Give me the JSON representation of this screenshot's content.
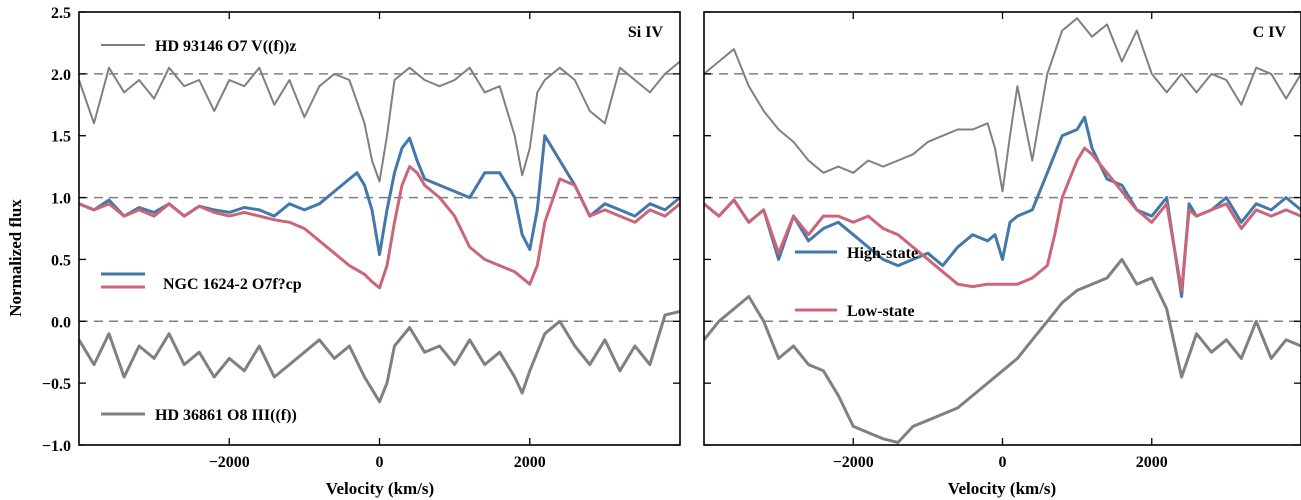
{
  "chart_data": [
    {
      "type": "line",
      "title": "Si IV",
      "xlabel": "Velocity (km/s)",
      "ylabel": "Normalized flux",
      "xlim": [
        -4000,
        4000
      ],
      "ylim": [
        -1.0,
        2.5
      ],
      "xticks": [
        -2000,
        0,
        2000
      ],
      "xtick_labels": [
        "−2000",
        "0",
        "2000"
      ],
      "yticks": [
        -1.0,
        -0.5,
        0.0,
        0.5,
        1.0,
        1.5,
        2.0,
        2.5
      ],
      "ytick_labels": [
        "−1.0",
        "−0.5",
        "0.0",
        "0.5",
        "1.0",
        "1.5",
        "2.0",
        "2.5"
      ],
      "reference_lines": [
        0.0,
        1.0,
        2.0
      ],
      "series": [
        {
          "name": "HD 93146 O7 V((f))z",
          "color": "#808080",
          "x": [
            -4000,
            -3800,
            -3600,
            -3400,
            -3200,
            -3000,
            -2800,
            -2600,
            -2400,
            -2200,
            -2000,
            -1800,
            -1600,
            -1400,
            -1200,
            -1000,
            -800,
            -600,
            -400,
            -200,
            -100,
            0,
            100,
            200,
            400,
            600,
            800,
            1000,
            1200,
            1400,
            1600,
            1800,
            1900,
            2000,
            2100,
            2200,
            2400,
            2600,
            2800,
            3000,
            3200,
            3400,
            3600,
            3800,
            4000
          ],
          "y": [
            1.95,
            1.6,
            2.05,
            1.85,
            1.95,
            1.8,
            2.05,
            1.9,
            1.95,
            1.7,
            1.95,
            1.9,
            2.05,
            1.75,
            1.95,
            1.65,
            1.9,
            2.0,
            1.95,
            1.6,
            1.3,
            1.13,
            1.5,
            1.95,
            2.05,
            1.95,
            1.9,
            1.95,
            2.05,
            1.85,
            1.9,
            1.5,
            1.18,
            1.4,
            1.85,
            1.95,
            2.05,
            1.95,
            1.7,
            1.6,
            2.05,
            1.95,
            1.85,
            2.0,
            2.1
          ]
        },
        {
          "name": "NGC 1624-2 O7f?cp",
          "color": "#4477aa",
          "x": [
            -4000,
            -3800,
            -3600,
            -3400,
            -3200,
            -3000,
            -2800,
            -2600,
            -2400,
            -2200,
            -2000,
            -1800,
            -1600,
            -1400,
            -1200,
            -1000,
            -800,
            -600,
            -400,
            -300,
            -200,
            -100,
            0,
            100,
            200,
            300,
            400,
            500,
            600,
            800,
            1000,
            1200,
            1400,
            1600,
            1800,
            1900,
            2000,
            2100,
            2200,
            2400,
            2600,
            2800,
            3000,
            3200,
            3400,
            3600,
            3800,
            4000
          ],
          "y": [
            0.95,
            0.9,
            0.98,
            0.85,
            0.92,
            0.88,
            0.95,
            0.85,
            0.93,
            0.9,
            0.88,
            0.92,
            0.9,
            0.85,
            0.95,
            0.9,
            0.95,
            1.05,
            1.15,
            1.2,
            1.1,
            0.9,
            0.54,
            0.9,
            1.2,
            1.4,
            1.48,
            1.3,
            1.15,
            1.1,
            1.05,
            1.0,
            1.2,
            1.2,
            1.0,
            0.7,
            0.58,
            0.9,
            1.5,
            1.3,
            1.1,
            0.85,
            0.95,
            0.9,
            0.85,
            0.95,
            0.9,
            1.0
          ]
        },
        {
          "name": "NGC 1624-2 O7f?cp (Low-state)",
          "color": "#cc6677",
          "x": [
            -4000,
            -3800,
            -3600,
            -3400,
            -3200,
            -3000,
            -2800,
            -2600,
            -2400,
            -2200,
            -2000,
            -1800,
            -1600,
            -1400,
            -1200,
            -1000,
            -800,
            -600,
            -400,
            -200,
            -100,
            0,
            100,
            200,
            300,
            400,
            500,
            600,
            800,
            1000,
            1200,
            1400,
            1600,
            1800,
            2000,
            2100,
            2200,
            2400,
            2600,
            2800,
            3000,
            3200,
            3400,
            3600,
            3800,
            4000
          ],
          "y": [
            0.95,
            0.9,
            0.95,
            0.85,
            0.9,
            0.85,
            0.95,
            0.85,
            0.93,
            0.88,
            0.85,
            0.88,
            0.85,
            0.82,
            0.8,
            0.75,
            0.65,
            0.55,
            0.45,
            0.38,
            0.32,
            0.27,
            0.45,
            0.8,
            1.1,
            1.25,
            1.2,
            1.1,
            1.0,
            0.85,
            0.6,
            0.5,
            0.45,
            0.4,
            0.3,
            0.45,
            0.8,
            1.15,
            1.1,
            0.85,
            0.9,
            0.85,
            0.8,
            0.9,
            0.85,
            0.95
          ]
        },
        {
          "name": "HD 36861 O8 III((f))",
          "color": "#808080",
          "x": [
            -4000,
            -3800,
            -3600,
            -3400,
            -3200,
            -3000,
            -2800,
            -2600,
            -2400,
            -2200,
            -2000,
            -1800,
            -1600,
            -1400,
            -1200,
            -1000,
            -800,
            -600,
            -400,
            -200,
            -100,
            0,
            100,
            200,
            400,
            600,
            800,
            1000,
            1200,
            1400,
            1600,
            1800,
            1900,
            2000,
            2200,
            2400,
            2600,
            2800,
            3000,
            3200,
            3400,
            3600,
            3800,
            4000
          ],
          "y": [
            -0.15,
            -0.35,
            -0.1,
            -0.45,
            -0.2,
            -0.3,
            -0.1,
            -0.35,
            -0.25,
            -0.45,
            -0.3,
            -0.4,
            -0.2,
            -0.45,
            -0.35,
            -0.25,
            -0.15,
            -0.3,
            -0.2,
            -0.45,
            -0.55,
            -0.65,
            -0.5,
            -0.2,
            -0.05,
            -0.25,
            -0.2,
            -0.35,
            -0.15,
            -0.35,
            -0.25,
            -0.45,
            -0.58,
            -0.4,
            -0.1,
            0.0,
            -0.2,
            -0.35,
            -0.15,
            -0.4,
            -0.2,
            -0.35,
            0.05,
            0.08
          ]
        }
      ],
      "legend": [
        {
          "label": "HD 93146 O7 V((f))z",
          "series": 0,
          "position": "top-left"
        },
        {
          "label": "NGC 1624-2 O7f?cp",
          "series": [
            1,
            2
          ],
          "position": "center-left"
        },
        {
          "label": "HD 36861 O8 III((f))",
          "series": 3,
          "position": "bottom-left"
        }
      ]
    },
    {
      "type": "line",
      "title": "C IV",
      "xlabel": "Velocity (km/s)",
      "ylabel": "",
      "xlim": [
        -4000,
        4000
      ],
      "ylim": [
        -1.0,
        2.5
      ],
      "xticks": [
        -2000,
        0,
        2000
      ],
      "xtick_labels": [
        "−2000",
        "0",
        "2000"
      ],
      "reference_lines": [
        0.0,
        1.0,
        2.0
      ],
      "series": [
        {
          "name": "",
          "color": "#808080",
          "x": [
            -4000,
            -3800,
            -3600,
            -3400,
            -3200,
            -3000,
            -2800,
            -2600,
            -2400,
            -2200,
            -2000,
            -1800,
            -1600,
            -1400,
            -1200,
            -1000,
            -800,
            -600,
            -400,
            -200,
            -100,
            0,
            100,
            200,
            400,
            600,
            800,
            1000,
            1200,
            1400,
            1600,
            1800,
            2000,
            2200,
            2400,
            2600,
            2800,
            3000,
            3200,
            3400,
            3600,
            3800,
            4000
          ],
          "y": [
            2.0,
            2.1,
            2.2,
            1.9,
            1.7,
            1.55,
            1.45,
            1.3,
            1.2,
            1.25,
            1.2,
            1.3,
            1.25,
            1.3,
            1.35,
            1.45,
            1.5,
            1.55,
            1.55,
            1.6,
            1.4,
            1.05,
            1.5,
            1.9,
            1.3,
            2.0,
            2.35,
            2.45,
            2.3,
            2.4,
            2.1,
            2.35,
            2.0,
            1.85,
            2.0,
            1.85,
            2.0,
            1.95,
            1.75,
            2.05,
            2.0,
            1.8,
            2.0
          ]
        },
        {
          "name": "High-state",
          "color": "#4477aa",
          "x": [
            -4000,
            -3800,
            -3600,
            -3400,
            -3200,
            -3000,
            -2800,
            -2600,
            -2400,
            -2200,
            -2000,
            -1800,
            -1600,
            -1400,
            -1200,
            -1000,
            -800,
            -600,
            -400,
            -200,
            -100,
            0,
            100,
            200,
            400,
            600,
            800,
            1000,
            1100,
            1200,
            1400,
            1600,
            1800,
            2000,
            2200,
            2400,
            2500,
            2600,
            2800,
            3000,
            3200,
            3400,
            3600,
            3800,
            4000
          ],
          "y": [
            0.95,
            0.85,
            0.98,
            0.8,
            0.9,
            0.5,
            0.85,
            0.65,
            0.75,
            0.8,
            0.7,
            0.6,
            0.5,
            0.45,
            0.5,
            0.55,
            0.45,
            0.6,
            0.7,
            0.65,
            0.7,
            0.5,
            0.8,
            0.85,
            0.9,
            1.2,
            1.5,
            1.55,
            1.65,
            1.4,
            1.15,
            1.1,
            0.9,
            0.85,
            1.0,
            0.2,
            0.95,
            0.85,
            0.9,
            1.0,
            0.8,
            0.95,
            0.9,
            1.0,
            0.9
          ]
        },
        {
          "name": "Low-state",
          "color": "#cc6677",
          "x": [
            -4000,
            -3800,
            -3600,
            -3400,
            -3200,
            -3000,
            -2800,
            -2600,
            -2400,
            -2200,
            -2000,
            -1800,
            -1600,
            -1400,
            -1200,
            -1000,
            -800,
            -600,
            -400,
            -200,
            0,
            200,
            400,
            600,
            700,
            800,
            1000,
            1100,
            1200,
            1400,
            1600,
            1800,
            2000,
            2200,
            2400,
            2500,
            2600,
            2800,
            3000,
            3200,
            3400,
            3600,
            3800,
            4000
          ],
          "y": [
            0.95,
            0.85,
            0.98,
            0.8,
            0.9,
            0.55,
            0.85,
            0.7,
            0.85,
            0.85,
            0.8,
            0.85,
            0.75,
            0.7,
            0.6,
            0.5,
            0.4,
            0.3,
            0.28,
            0.3,
            0.3,
            0.3,
            0.35,
            0.45,
            0.7,
            1.0,
            1.3,
            1.4,
            1.35,
            1.2,
            1.05,
            0.9,
            0.8,
            0.95,
            0.25,
            0.9,
            0.85,
            0.9,
            0.95,
            0.75,
            0.9,
            0.85,
            0.9,
            0.85
          ]
        },
        {
          "name": "",
          "color": "#808080",
          "x": [
            -4000,
            -3800,
            -3600,
            -3400,
            -3200,
            -3000,
            -2800,
            -2600,
            -2400,
            -2200,
            -2000,
            -1800,
            -1600,
            -1400,
            -1200,
            -1000,
            -800,
            -600,
            -400,
            -200,
            0,
            200,
            400,
            600,
            800,
            1000,
            1200,
            1400,
            1600,
            1800,
            2000,
            2200,
            2400,
            2600,
            2800,
            3000,
            3200,
            3400,
            3600,
            3800,
            4000
          ],
          "y": [
            -0.15,
            0.0,
            0.1,
            0.2,
            0.0,
            -0.3,
            -0.2,
            -0.35,
            -0.4,
            -0.6,
            -0.85,
            -0.9,
            -0.95,
            -0.98,
            -0.85,
            -0.8,
            -0.75,
            -0.7,
            -0.6,
            -0.5,
            -0.4,
            -0.3,
            -0.15,
            0.0,
            0.15,
            0.25,
            0.3,
            0.35,
            0.5,
            0.3,
            0.35,
            0.1,
            -0.45,
            -0.1,
            -0.25,
            -0.15,
            -0.3,
            0.0,
            -0.3,
            -0.15,
            -0.2
          ]
        }
      ],
      "legend": [
        {
          "label": "High-state",
          "series": 1,
          "position": "center-left"
        },
        {
          "label": "Low-state",
          "series": 2,
          "position": "center-left"
        }
      ]
    }
  ]
}
